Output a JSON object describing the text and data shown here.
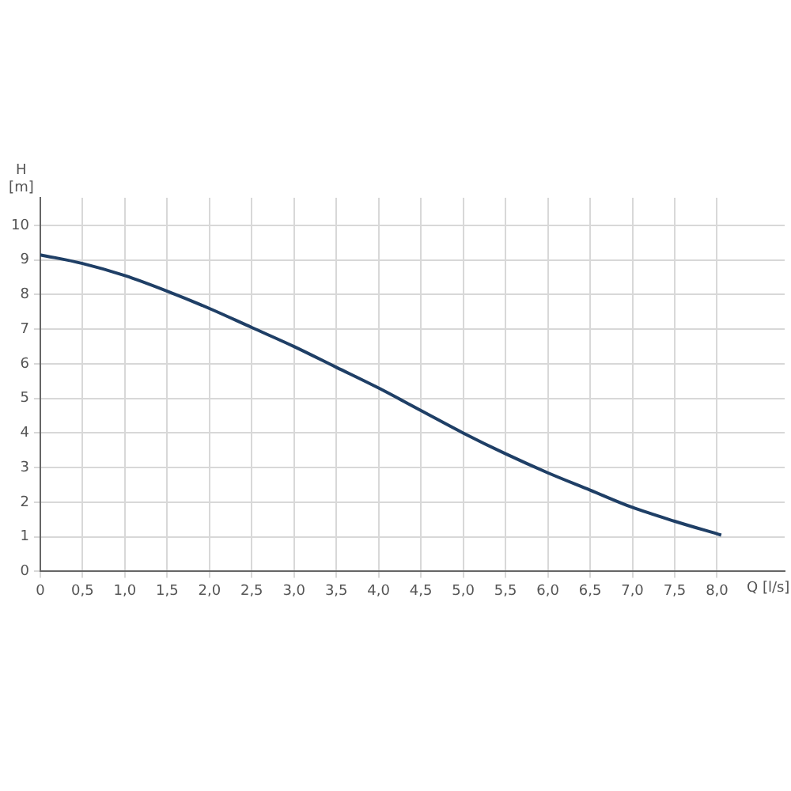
{
  "chart_data": {
    "type": "line",
    "xlabel": "Q [l/s]",
    "ylabel": "H [m]",
    "x": [
      0,
      0.5,
      1.0,
      1.5,
      2.0,
      2.5,
      3.0,
      3.5,
      4.0,
      4.5,
      5.0,
      5.5,
      6.0,
      6.5,
      7.0,
      7.5,
      8.05
    ],
    "series": [
      {
        "color": "#1f3f66",
        "values": [
          9.15,
          8.9,
          8.55,
          8.1,
          7.6,
          7.05,
          6.5,
          5.9,
          5.3,
          4.65,
          4.0,
          3.4,
          2.85,
          2.35,
          1.85,
          1.45,
          1.05
        ]
      }
    ],
    "xlim": [
      0,
      8.8
    ],
    "ylim": [
      0,
      10.8
    ],
    "xticks": [
      0,
      {
        "value": 0.5,
        "label": "0,5"
      },
      {
        "value": 1,
        "label": "1,0"
      },
      {
        "value": 1.5,
        "label": "1,5"
      },
      {
        "value": 2,
        "label": "2,0"
      },
      {
        "value": 2.5,
        "label": "2,5"
      },
      {
        "value": 3,
        "label": "3,0"
      },
      {
        "value": 3.5,
        "label": "3,5"
      },
      {
        "value": 4,
        "label": "4,0"
      },
      {
        "value": 4.5,
        "label": "4,5"
      },
      {
        "value": 5,
        "label": "5,0"
      },
      {
        "value": 5.5,
        "label": "5,5"
      },
      {
        "value": 6,
        "label": "6,0"
      },
      {
        "value": 6.5,
        "label": "6,5"
      },
      {
        "value": 7,
        "label": "7,0"
      },
      {
        "value": 7.5,
        "label": "7,5"
      },
      {
        "value": 8,
        "label": "8,0"
      }
    ],
    "yticks": [
      0,
      1,
      2,
      3,
      4,
      5,
      6,
      7,
      8,
      9,
      10
    ],
    "grid": true,
    "marker": "none",
    "line_style": "solid"
  }
}
